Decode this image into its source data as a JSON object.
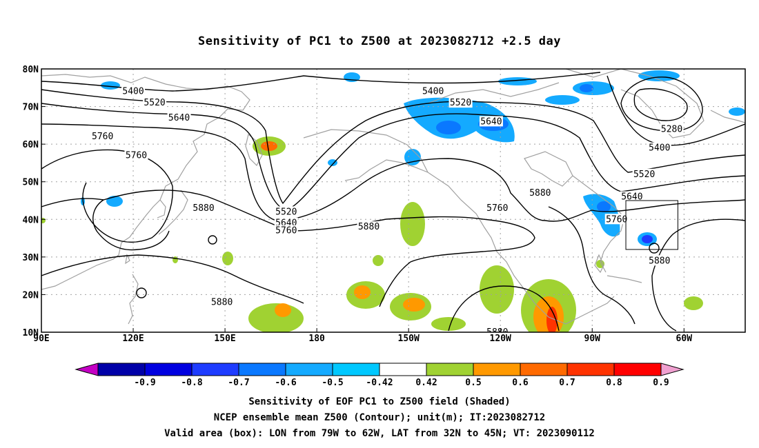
{
  "title": "Sensitivity of PC1 to Z500 at 2023082712 +2.5 day",
  "map": {
    "lon_ticks": [
      "90E",
      "120E",
      "150E",
      "180",
      "150W",
      "120W",
      "90W",
      "60W"
    ],
    "lat_ticks": [
      "80N",
      "70N",
      "60N",
      "50N",
      "40N",
      "30N",
      "20N",
      "10N"
    ],
    "lon_range_deg": [
      90,
      320
    ],
    "lat_range_deg": [
      10,
      80
    ],
    "contour_labels": [
      {
        "text": "5400",
        "lon": 120,
        "lat": 74
      },
      {
        "text": "5520",
        "lon": 127,
        "lat": 71
      },
      {
        "text": "5640",
        "lon": 135,
        "lat": 67
      },
      {
        "text": "5760",
        "lon": 110,
        "lat": 62
      },
      {
        "text": "5760",
        "lon": 121,
        "lat": 57
      },
      {
        "text": "5880",
        "lon": 143,
        "lat": 43
      },
      {
        "text": "5880",
        "lon": 149,
        "lat": 18
      },
      {
        "text": "5520",
        "lon": 170,
        "lat": 42
      },
      {
        "text": "5640",
        "lon": 170,
        "lat": 39
      },
      {
        "text": "5760",
        "lon": 170,
        "lat": 37
      },
      {
        "text": "5880",
        "lon": 197,
        "lat": 38
      },
      {
        "text": "5400",
        "lon": 218,
        "lat": 74
      },
      {
        "text": "5520",
        "lon": 227,
        "lat": 71
      },
      {
        "text": "5640",
        "lon": 237,
        "lat": 66
      },
      {
        "text": "5760",
        "lon": 239,
        "lat": 43
      },
      {
        "text": "5880",
        "lon": 253,
        "lat": 47
      },
      {
        "text": "5880",
        "lon": 239,
        "lat": 10
      },
      {
        "text": "5640",
        "lon": 283,
        "lat": 46
      },
      {
        "text": "5760",
        "lon": 278,
        "lat": 40
      },
      {
        "text": "5280",
        "lon": 296,
        "lat": 64
      },
      {
        "text": "5400",
        "lon": 292,
        "lat": 59
      },
      {
        "text": "5520",
        "lon": 287,
        "lat": 52
      },
      {
        "text": "5880",
        "lon": 292,
        "lat": 29
      }
    ],
    "valid_box": {
      "lon_w": 281,
      "lon_e": 298,
      "lat_s": 32,
      "lat_n": 45
    },
    "colors": {
      "contour": "#000000",
      "coast": "#a0a0a0",
      "grid": "#a0a0a0"
    }
  },
  "colorbar": {
    "tick_labels": [
      "-0.9",
      "-0.8",
      "-0.7",
      "-0.6",
      "-0.5",
      "-0.42",
      "0.42",
      "0.5",
      "0.6",
      "0.7",
      "0.8",
      "0.9"
    ],
    "colors": [
      "#c400c4",
      "#0000a8",
      "#0000e0",
      "#1e3cff",
      "#0a78ff",
      "#14aaff",
      "#00c8ff",
      "#ffffff",
      "#a0d232",
      "#ff9900",
      "#ff6a00",
      "#ff3300",
      "#ff0000",
      "#f0a0d0"
    ]
  },
  "captions": {
    "line1": "Sensitivity of EOF PC1 to Z500 field (Shaded)",
    "line2": "NCEP ensemble mean Z500 (Contour); unit(m); IT:2023082712",
    "line3": "Valid area (box): LON from 79W to 62W, LAT from 32N to 45N; VT: 2023090112"
  }
}
